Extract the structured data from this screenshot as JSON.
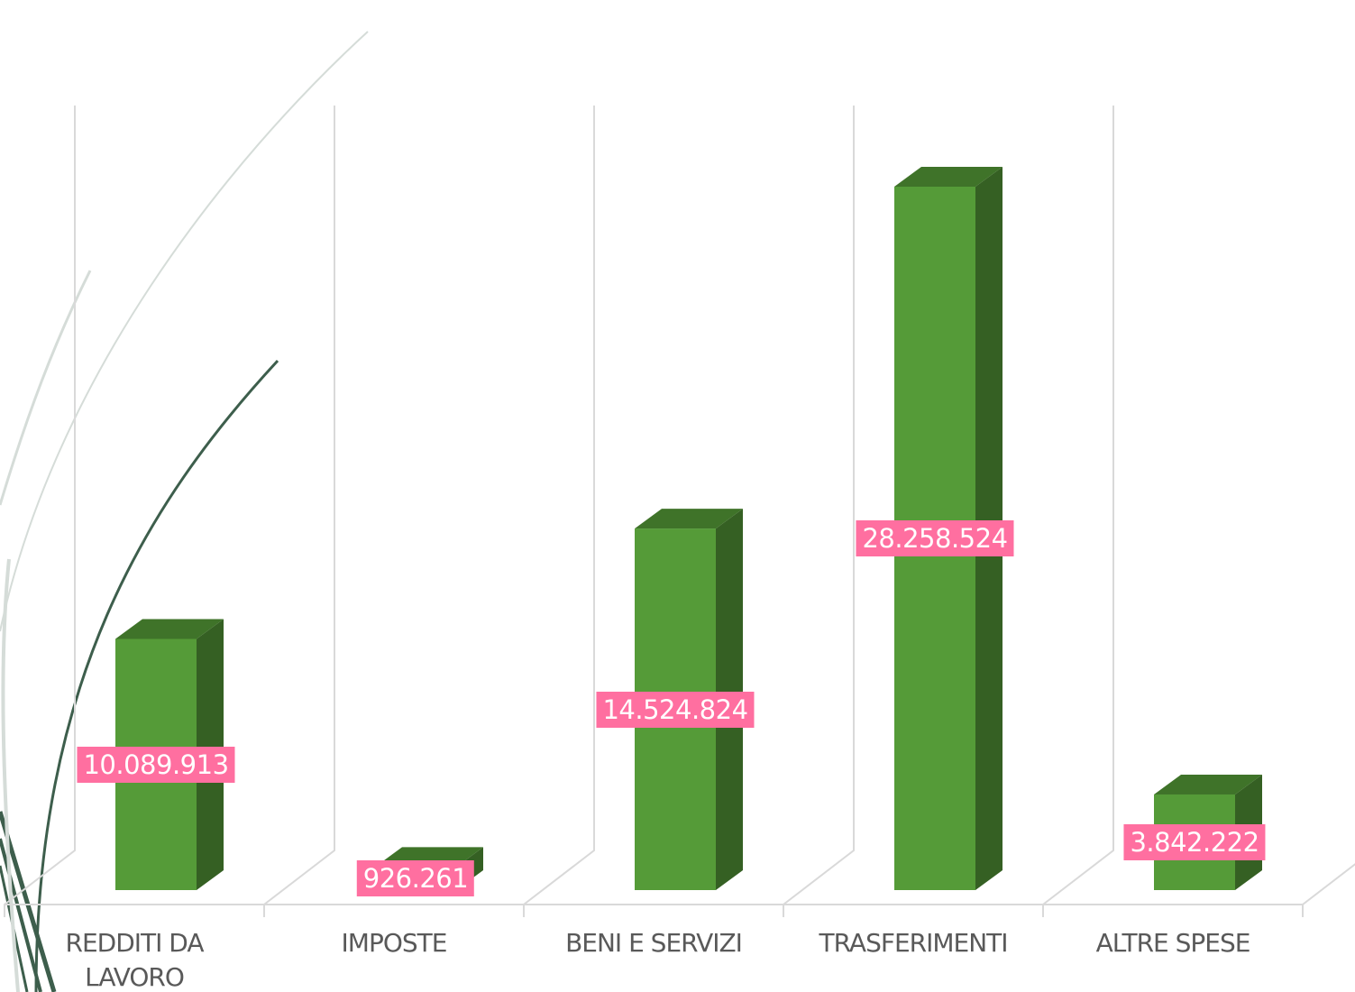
{
  "chart_data": {
    "type": "bar3d",
    "categories": [
      "REDDITI DA LAVORO",
      "IMPOSTE",
      "BENI E SERVIZI",
      "TRASFERIMENTI",
      "ALTRE SPESE"
    ],
    "values": [
      10089913,
      926261,
      14524824,
      28258524,
      3842222
    ],
    "value_labels": [
      "10.089.913",
      "926.261",
      "14.524.824",
      "28.258.524",
      "3.842.222"
    ],
    "color": "#559b38"
  }
}
